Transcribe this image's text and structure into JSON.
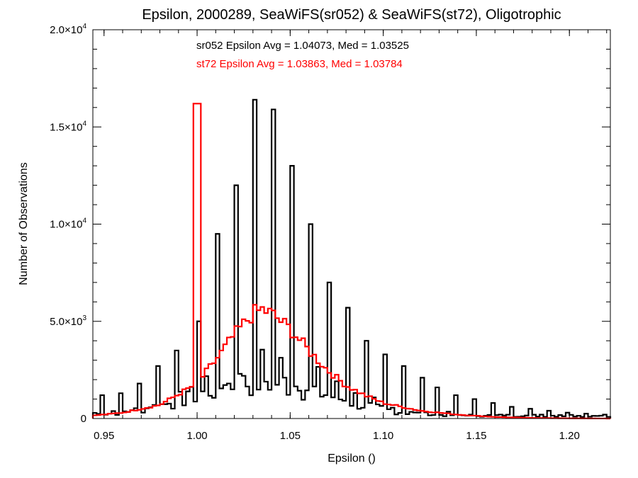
{
  "chart_data": {
    "type": "histogram",
    "title": "Epsilon, 2000289, SeaWiFS(sr052) & SeaWiFS(st72), Oligotrophic",
    "xlabel": "Epsilon ()",
    "ylabel": "Number of Observations",
    "xlim": [
      0.944,
      1.222
    ],
    "ylim": [
      0,
      20000
    ],
    "x_ticks": [
      {
        "value": 0.95,
        "label": "0.95"
      },
      {
        "value": 1.0,
        "label": "1.00"
      },
      {
        "value": 1.05,
        "label": "1.05"
      },
      {
        "value": 1.1,
        "label": "1.10"
      },
      {
        "value": 1.15,
        "label": "1.15"
      },
      {
        "value": 1.2,
        "label": "1.20"
      }
    ],
    "y_ticks": [
      {
        "value": 0,
        "mant": "0",
        "exp": ""
      },
      {
        "value": 5000,
        "mant": "5.0×10",
        "exp": "3"
      },
      {
        "value": 10000,
        "mant": "1.0×10",
        "exp": "4"
      },
      {
        "value": 15000,
        "mant": "1.5×10",
        "exp": "4"
      },
      {
        "value": 20000,
        "mant": "2.0×10",
        "exp": "4"
      }
    ],
    "annotations": [
      {
        "text": "sr052 Epsilon Avg = 1.04073, Med = 1.03525",
        "color": "#000000"
      },
      {
        "text": "st72 Epsilon Avg = 1.03863, Med = 1.03784",
        "color": "#ff0000"
      }
    ],
    "series": [
      {
        "name": "sr052",
        "color": "#000000",
        "bin_width": 0.002,
        "peaks": [
          {
            "x": 0.95,
            "y": 1200
          },
          {
            "x": 0.96,
            "y": 1300
          },
          {
            "x": 0.97,
            "y": 1800
          },
          {
            "x": 0.98,
            "y": 2700
          },
          {
            "x": 0.99,
            "y": 3500
          },
          {
            "x": 1.0,
            "y": 5000
          },
          {
            "x": 1.01,
            "y": 9500
          },
          {
            "x": 1.02,
            "y": 12000
          },
          {
            "x": 1.03,
            "y": 16400
          },
          {
            "x": 1.04,
            "y": 15900
          },
          {
            "x": 1.05,
            "y": 13000
          },
          {
            "x": 1.06,
            "y": 10000
          },
          {
            "x": 1.07,
            "y": 7000
          },
          {
            "x": 1.08,
            "y": 5700
          },
          {
            "x": 1.09,
            "y": 4000
          },
          {
            "x": 1.1,
            "y": 3300
          },
          {
            "x": 1.11,
            "y": 2700
          },
          {
            "x": 1.12,
            "y": 2100
          },
          {
            "x": 1.13,
            "y": 1600
          },
          {
            "x": 1.14,
            "y": 1200
          },
          {
            "x": 1.15,
            "y": 1000
          },
          {
            "x": 1.16,
            "y": 800
          },
          {
            "x": 1.17,
            "y": 600
          },
          {
            "x": 1.18,
            "y": 500
          },
          {
            "x": 1.19,
            "y": 400
          },
          {
            "x": 1.2,
            "y": 300
          },
          {
            "x": 1.21,
            "y": 250
          },
          {
            "x": 1.22,
            "y": 200
          }
        ],
        "base_peak": {
          "x": 1.035,
          "y": 1800
        },
        "base_floor": 150
      },
      {
        "name": "st72",
        "color": "#ff0000",
        "bin_width": 0.002,
        "peak": {
          "x": 1.035,
          "y": 5600
        },
        "spike": {
          "x": 1.0,
          "y": 16200
        },
        "curve": [
          {
            "x": 0.944,
            "y": 150
          },
          {
            "x": 0.96,
            "y": 300
          },
          {
            "x": 0.98,
            "y": 700
          },
          {
            "x": 1.0,
            "y": 1800
          },
          {
            "x": 1.01,
            "y": 3000
          },
          {
            "x": 1.02,
            "y": 4300
          },
          {
            "x": 1.03,
            "y": 5400
          },
          {
            "x": 1.035,
            "y": 5600
          },
          {
            "x": 1.04,
            "y": 5400
          },
          {
            "x": 1.05,
            "y": 4600
          },
          {
            "x": 1.06,
            "y": 3500
          },
          {
            "x": 1.07,
            "y": 2500
          },
          {
            "x": 1.08,
            "y": 1700
          },
          {
            "x": 1.09,
            "y": 1200
          },
          {
            "x": 1.1,
            "y": 800
          },
          {
            "x": 1.12,
            "y": 400
          },
          {
            "x": 1.14,
            "y": 200
          },
          {
            "x": 1.16,
            "y": 80
          },
          {
            "x": 1.18,
            "y": 30
          },
          {
            "x": 1.2,
            "y": 10
          },
          {
            "x": 1.222,
            "y": 0
          }
        ]
      }
    ]
  }
}
